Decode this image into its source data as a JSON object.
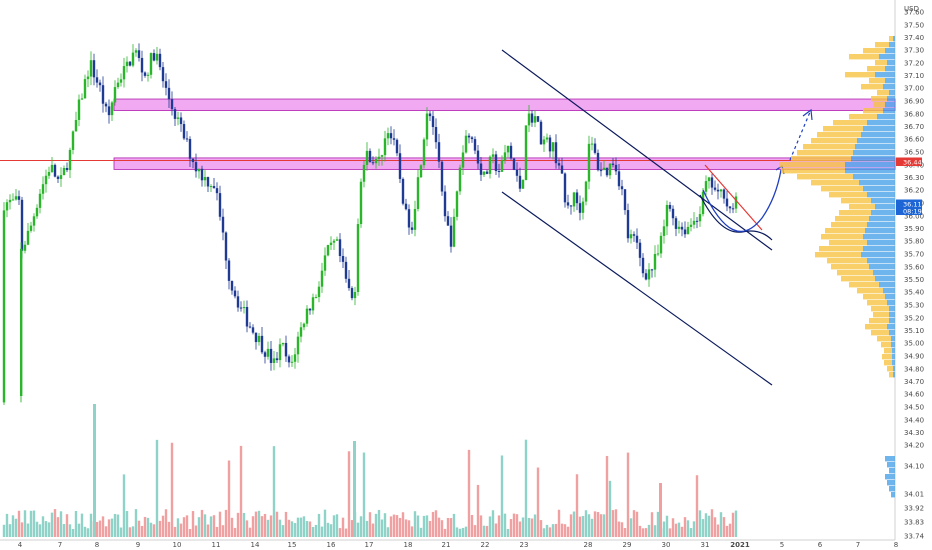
{
  "chart_data": {
    "type": "candlestick",
    "currency_label": "USD",
    "y_ticks": [
      "37.60",
      "37.50",
      "37.40",
      "37.30",
      "37.20",
      "37.10",
      "37.00",
      "36.90",
      "36.80",
      "36.70",
      "36.60",
      "36.50",
      "36.40",
      "36.30",
      "36.20",
      "36.10",
      "36.00",
      "35.90",
      "35.80",
      "35.70",
      "35.60",
      "35.50",
      "35.40",
      "35.30",
      "35.20",
      "35.10",
      "35.00",
      "34.90",
      "34.80",
      "34.70",
      "34.60",
      "34.50",
      "34.40",
      "34.30",
      "34.20",
      "34.10",
      "34.01",
      "33.92",
      "33.83",
      "33.74"
    ],
    "x_ticks": [
      "4",
      "7",
      "8",
      "9",
      "10",
      "11",
      "14",
      "15",
      "16",
      "17",
      "18",
      "21",
      "22",
      "23",
      "28",
      "29",
      "30",
      "31",
      "2021",
      "5",
      "6",
      "7",
      "8"
    ],
    "price_badges": [
      {
        "label": "36.44",
        "value": 36.44,
        "color": "#e53935"
      },
      {
        "label": "36.11",
        "value": 36.11,
        "color": "#1e66d6"
      },
      {
        "label": "08:19",
        "value": 36.03,
        "color": "#1e66d6"
      }
    ],
    "horizontal_line": {
      "value": 36.44,
      "color": "#e53935"
    },
    "zones": [
      {
        "from": 36.83,
        "to": 36.92,
        "color": "#e040e0"
      },
      {
        "from": 36.37,
        "to": 36.46,
        "color": "#e040e0"
      }
    ],
    "colors": {
      "up": "#2bb52b",
      "down": "#1f3a93",
      "vol_up": "#8fd3c8",
      "vol_down": "#f0a0a0",
      "channel": "#0b1a5c",
      "projection": "#1f3fbf",
      "resistance": "#e53935",
      "profile_up": "#f6c343",
      "profile_down": "#4aa3e8"
    }
  }
}
